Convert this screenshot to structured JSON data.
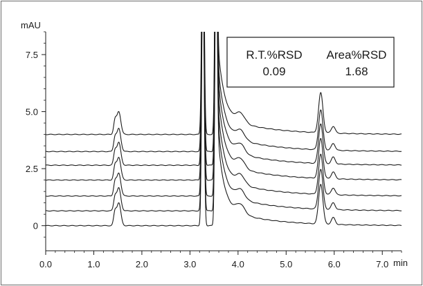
{
  "chart_data": {
    "type": "line",
    "xlabel": "min",
    "ylabel": "mAU",
    "xlim": [
      0.0,
      7.4
    ],
    "ylim": [
      -1.1,
      8.5
    ],
    "x_ticks": [
      0.0,
      1.0,
      2.0,
      3.0,
      4.0,
      5.0,
      6.0,
      7.0
    ],
    "x_tick_labels": [
      "0.0",
      "1.0",
      "2.0",
      "3.0",
      "4.0",
      "5.0",
      "6.0",
      "7.0"
    ],
    "y_ticks": [
      0,
      2.5,
      5.0,
      7.5
    ],
    "y_tick_labels": [
      "0",
      "2.5",
      "5.0",
      "7.5"
    ],
    "grid": false,
    "line_color": "#1a1a1a",
    "series_baselines": [
      0.0,
      0.65,
      1.3,
      2.0,
      2.65,
      3.25,
      4.0
    ],
    "peaks": [
      {
        "rt": 1.44,
        "height": 0.55
      },
      {
        "rt": 1.52,
        "height": 1.0
      },
      {
        "rt": 3.27,
        "height": 12.0
      },
      {
        "rt": 3.54,
        "height": 12.0
      },
      {
        "rt": 4.05,
        "height": 0.4
      },
      {
        "rt": 5.72,
        "height": 1.75
      },
      {
        "rt": 5.98,
        "height": 0.3
      }
    ],
    "annotation": {
      "headers": [
        "R.T.%RSD",
        "Area%RSD"
      ],
      "values": [
        "0.09",
        "1.68"
      ]
    }
  }
}
